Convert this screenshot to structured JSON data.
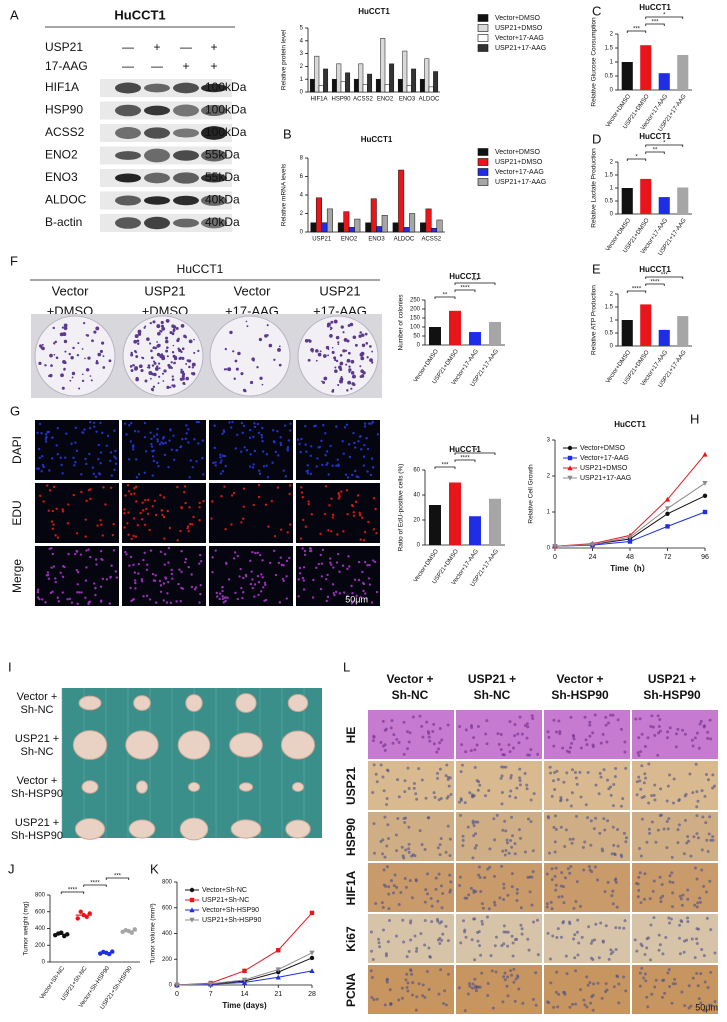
{
  "panel_labels": [
    "A",
    "B",
    "C",
    "D",
    "E",
    "F",
    "G",
    "H",
    "I",
    "J",
    "K",
    "L"
  ],
  "blot": {
    "title": "HuCCT1",
    "conditions": [
      {
        "name": "USP21",
        "marks": [
          "—",
          "+",
          "—",
          "+"
        ]
      },
      {
        "name": "17-AAG",
        "marks": [
          "—",
          "—",
          "+",
          "+"
        ]
      }
    ],
    "bands": [
      {
        "protein": "HIF1A",
        "size": "100kDa"
      },
      {
        "protein": "HSP90",
        "size": "100kDa"
      },
      {
        "protein": "ACSS2",
        "size": "100kDa"
      },
      {
        "protein": "ENO2",
        "size": "55kDa"
      },
      {
        "protein": "ENO3",
        "size": "55kDa"
      },
      {
        "protein": "ALDOC",
        "size": "40kDa"
      },
      {
        "protein": "B-actin",
        "size": "40kDa"
      }
    ]
  },
  "colony": {
    "title": "HuCCT1",
    "columns": [
      [
        "Vector",
        "+DMSO"
      ],
      [
        "USP21",
        "+DMSO"
      ],
      [
        "Vector",
        "+17-AAG"
      ],
      [
        "USP21",
        "+17-AAG"
      ]
    ]
  },
  "edu": {
    "rows": [
      "DAPI",
      "EDU",
      "Merge"
    ],
    "scale": "50μm"
  },
  "tumors": {
    "rows": [
      [
        "Vector +",
        "Sh-NC"
      ],
      [
        "USP21 +",
        "Sh-NC"
      ],
      [
        "Vector +",
        "Sh-HSP90"
      ],
      [
        "USP21 +",
        "Sh-HSP90"
      ]
    ]
  },
  "ihc": {
    "columns": [
      [
        "Vector +",
        "Sh-NC"
      ],
      [
        "USP21 +",
        "Sh-NC"
      ],
      [
        "Vector +",
        "Sh-HSP90"
      ],
      [
        "USP21 +",
        "Sh-HSP90"
      ]
    ],
    "rows": [
      "HE",
      "USP21",
      "HSP90",
      "HIF1A",
      "Ki67",
      "PCNA"
    ],
    "scale": "50μm"
  },
  "chart_data": [
    {
      "type": "bar",
      "title": "HuCCT1",
      "ylabel": "Relative protein level",
      "legend": "outside",
      "categories": [
        "HIF1A",
        "HSP90",
        "ACSS2",
        "ENO2",
        "ENO3",
        "ALDOC"
      ],
      "series": [
        {
          "name": "Vector+DMSO",
          "color": "#111111",
          "values": [
            1,
            1,
            1,
            1,
            1,
            1
          ]
        },
        {
          "name": "USP21+DMSO",
          "color": "#d9d9d9",
          "values": [
            2.8,
            2.2,
            2.2,
            4.2,
            3.2,
            2.6
          ]
        },
        {
          "name": "Vector+17-AAG",
          "color": "#ffffff",
          "values": [
            0.5,
            0.8,
            0.6,
            0.6,
            0.5,
            0.4
          ]
        },
        {
          "name": "USP21+17-AAG",
          "color": "#333333",
          "values": [
            1.8,
            1.5,
            1.4,
            2.2,
            1.8,
            1.6
          ]
        }
      ],
      "ylim": [
        0,
        5
      ],
      "yticks": [
        0,
        1,
        2,
        3,
        4,
        5
      ]
    },
    {
      "type": "bar",
      "title": "HuCCT1",
      "ylabel": "Relative mRNA levels",
      "legend": "outside",
      "categories": [
        "USP21",
        "ENO2",
        "ENO3",
        "ALDOC",
        "ACSS2"
      ],
      "series": [
        {
          "name": "Vector+DMSO",
          "color": "#111111",
          "values": [
            1,
            1,
            1,
            1,
            1
          ]
        },
        {
          "name": "USP21+DMSO",
          "color": "#e8161b",
          "values": [
            3.7,
            2.2,
            3.6,
            6.7,
            2.5
          ]
        },
        {
          "name": "Vector+17-AAG",
          "color": "#1f2ee6",
          "values": [
            1,
            0.5,
            0.6,
            0.5,
            0.4
          ]
        },
        {
          "name": "USP21+17-AAG",
          "color": "#a6a6a6",
          "values": [
            2.5,
            1.4,
            1.8,
            2,
            1.3
          ]
        }
      ],
      "ylim": [
        0,
        8
      ],
      "yticks": [
        0,
        2,
        4,
        6,
        8
      ]
    },
    {
      "type": "bar",
      "title": "HuCCT1",
      "ylabel": "Relative Glucose Consumption",
      "categories": [
        "Vector+DMSO",
        "USP21+DMSO",
        "Vector+17-AAG",
        "USP21+17-AAG"
      ],
      "values": [
        1,
        1.6,
        0.6,
        1.25
      ],
      "colors": [
        "#111111",
        "#e8161b",
        "#1f2ee6",
        "#a6a6a6"
      ],
      "ylim": [
        0,
        2
      ],
      "yticks": [
        0,
        0.5,
        1,
        1.5,
        2
      ],
      "annotations": [
        {
          "text": "***",
          "pair": [
            0,
            1
          ]
        },
        {
          "text": "***",
          "pair": [
            1,
            2
          ]
        },
        {
          "text": "*",
          "pair": [
            1,
            3
          ]
        }
      ]
    },
    {
      "type": "bar",
      "title": "HuCCT1",
      "ylabel": "Relative Lactate Production",
      "categories": [
        "Vector+DMSO",
        "USP21+DMSO",
        "Vector+17-AAG",
        "USP21+17-AAG"
      ],
      "values": [
        1,
        1.35,
        0.65,
        1.02
      ],
      "colors": [
        "#111111",
        "#e8161b",
        "#1f2ee6",
        "#a6a6a6"
      ],
      "ylim": [
        0,
        2
      ],
      "yticks": [
        0,
        0.5,
        1,
        1.5,
        2
      ],
      "annotations": [
        {
          "text": "*",
          "pair": [
            0,
            1
          ]
        },
        {
          "text": "**",
          "pair": [
            1,
            2
          ]
        },
        {
          "text": "*",
          "pair": [
            1,
            3
          ]
        }
      ]
    },
    {
      "type": "bar",
      "title": "HuCCT1",
      "ylabel": "Relative ATP Production",
      "categories": [
        "Vector+DMSO",
        "USP21+DMSO",
        "Vector+17-AAG",
        "USP21+17-AAG"
      ],
      "values": [
        1,
        1.6,
        0.62,
        1.15
      ],
      "colors": [
        "#111111",
        "#e8161b",
        "#1f2ee6",
        "#a6a6a6"
      ],
      "ylim": [
        0,
        2
      ],
      "yticks": [
        0,
        0.5,
        1,
        1.5,
        2
      ],
      "annotations": [
        {
          "text": "****",
          "pair": [
            0,
            1
          ]
        },
        {
          "text": "****",
          "pair": [
            1,
            2
          ]
        },
        {
          "text": "***",
          "pair": [
            1,
            3
          ]
        }
      ]
    },
    {
      "type": "bar",
      "title": "HuCCT1",
      "ylabel": "Number of colonies",
      "categories": [
        "Vector+DMSO",
        "USP21+DMSO",
        "Vector+17-AAG",
        "USP21+17-AAG"
      ],
      "values": [
        100,
        190,
        72,
        128
      ],
      "colors": [
        "#111111",
        "#e8161b",
        "#1f2ee6",
        "#a6a6a6"
      ],
      "ylim": [
        0,
        250
      ],
      "yticks": [
        0,
        50,
        100,
        150,
        200,
        250
      ],
      "annotations": [
        {
          "text": "**",
          "pair": [
            0,
            1
          ]
        },
        {
          "text": "****",
          "pair": [
            1,
            2
          ]
        },
        {
          "text": "***",
          "pair": [
            1,
            3
          ]
        }
      ]
    },
    {
      "type": "bar",
      "title": "HuCCT1",
      "ylabel": "Ratio of EdU-positive cells (%)",
      "categories": [
        "Vector+DMSO",
        "USP21+DMSO",
        "Vector+17-AAG",
        "USP21+17-AAG"
      ],
      "values": [
        32,
        50,
        23,
        37
      ],
      "colors": [
        "#111111",
        "#e8161b",
        "#1f2ee6",
        "#a6a6a6"
      ],
      "ylim": [
        0,
        60
      ],
      "yticks": [
        0,
        20,
        40,
        60
      ],
      "annotations": [
        {
          "text": "***",
          "pair": [
            0,
            1
          ]
        },
        {
          "text": "****",
          "pair": [
            1,
            2
          ]
        },
        {
          "text": "**",
          "pair": [
            1,
            3
          ]
        }
      ]
    },
    {
      "type": "line",
      "title": "HuCCT1",
      "xlabel": "Time（h）",
      "ylabel": "Relative Cell Growth",
      "legend": "upper left",
      "x": [
        0,
        24,
        48,
        72,
        96
      ],
      "series": [
        {
          "name": "Vector+DMSO",
          "color": "#111111",
          "marker": "circle",
          "values": [
            0.05,
            0.1,
            0.25,
            0.95,
            1.45
          ]
        },
        {
          "name": "Vector+17-AAG",
          "color": "#1f2ee6",
          "marker": "square",
          "values": [
            0.05,
            0.08,
            0.18,
            0.6,
            1.0
          ]
        },
        {
          "name": "USP21+DMSO",
          "color": "#e8161b",
          "marker": "triangle",
          "values": [
            0.05,
            0.12,
            0.35,
            1.35,
            2.6
          ]
        },
        {
          "name": "USP21+17-AAG",
          "color": "#8c8c8c",
          "marker": "triangle-down",
          "values": [
            0.05,
            0.1,
            0.3,
            1.1,
            1.8
          ]
        }
      ],
      "xlim": [
        0,
        96
      ],
      "xticks": [
        0,
        24,
        48,
        72,
        96
      ],
      "ylim": [
        0,
        3
      ],
      "yticks": [
        0,
        1,
        2,
        3
      ]
    },
    {
      "type": "dot",
      "ylabel": "Tumor weight (mg)",
      "categories": [
        "Vector+Sh-NC",
        "USP21+Sh-NC",
        "Vector+Sh-HSP90",
        "USP21+Sh-HSP90"
      ],
      "values": [
        330,
        560,
        110,
        370
      ],
      "points": [
        [
          320,
          340,
          350,
          310,
          330
        ],
        [
          520,
          600,
          560,
          540,
          580
        ],
        [
          100,
          120,
          110,
          95,
          125
        ],
        [
          360,
          380,
          370,
          350,
          390
        ]
      ],
      "colors": [
        "#111111",
        "#e8161b",
        "#1f2ee6",
        "#a6a6a6"
      ],
      "ylim": [
        0,
        800
      ],
      "yticks": [
        0,
        200,
        400,
        600,
        800
      ],
      "annotations": [
        {
          "text": "****",
          "pair": [
            0,
            1
          ]
        },
        {
          "text": "****",
          "pair": [
            1,
            2
          ]
        },
        {
          "text": "***",
          "pair": [
            2,
            3
          ]
        }
      ]
    },
    {
      "type": "line",
      "xlabel": "Time (days)",
      "ylabel": "Tumor volume (mm³)",
      "legend": "upper left",
      "x": [
        0,
        7,
        14,
        21,
        28
      ],
      "series": [
        {
          "name": "Vector+Sh-NC",
          "color": "#111111",
          "marker": "circle",
          "values": [
            0,
            10,
            30,
            100,
            210
          ]
        },
        {
          "name": "USP21+Sh-NC",
          "color": "#e8161b",
          "marker": "square",
          "values": [
            0,
            15,
            110,
            270,
            560
          ]
        },
        {
          "name": "Vector+Sh-HSP90",
          "color": "#1f2ee6",
          "marker": "triangle",
          "values": [
            0,
            5,
            20,
            60,
            110
          ]
        },
        {
          "name": "USP21+Sh-HSP90",
          "color": "#8c8c8c",
          "marker": "triangle-down",
          "values": [
            0,
            10,
            40,
            120,
            250
          ]
        }
      ],
      "xlim": [
        0,
        28
      ],
      "xticks": [
        0,
        7,
        14,
        21,
        28
      ],
      "ylim": [
        0,
        800
      ],
      "yticks": [
        0,
        200,
        400,
        600,
        800
      ]
    }
  ]
}
